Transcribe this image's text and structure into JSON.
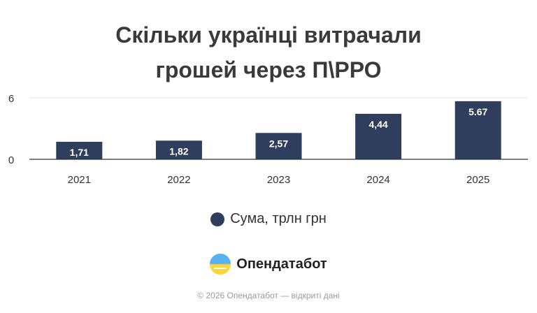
{
  "chart_data": {
    "type": "bar",
    "title_lines": [
      "Скільки українці витрачали",
      "грошей через П\\РРО"
    ],
    "categories": [
      "2021",
      "2022",
      "2023",
      "2024",
      "2025"
    ],
    "series": [
      {
        "name": "Сума, трлн грн",
        "values": [
          1.71,
          1.82,
          2.57,
          4.44,
          5.67
        ],
        "labels": [
          "1,71",
          "1,82",
          "2,57",
          "4,44",
          "5.67"
        ]
      }
    ],
    "ylim": [
      0,
      6
    ],
    "yticks": [
      "0",
      "6"
    ],
    "grid": true,
    "legend_position": "bottom"
  },
  "colors": {
    "bar": "#2f3e5c",
    "label": "#ffffff",
    "grid": "#e6e6e6",
    "axis": "#333333",
    "text": "#333333"
  },
  "branding": {
    "logo_text": "Опендатабот",
    "logo_icon": "opendatabot-logo-icon"
  },
  "footer": "© 2026 Опендатабот — відкриті дані"
}
